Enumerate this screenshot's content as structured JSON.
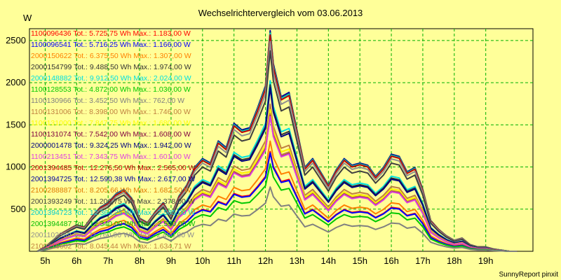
{
  "chart_data": {
    "type": "line",
    "title": "Wechselrichtervergleich vom 03.06.2013",
    "ylabel": "W",
    "credit": "SunnyReport pinxit",
    "ylim": [
      0,
      2640
    ],
    "yticks": [
      500,
      1000,
      1500,
      2000,
      2500
    ],
    "xlim": [
      4.5,
      20.5
    ],
    "xticks": [
      5,
      6,
      7,
      8,
      9,
      10,
      11,
      12,
      13,
      14,
      15,
      16,
      17,
      18,
      19
    ],
    "xtick_labels": [
      "5h",
      "6h",
      "7h",
      "8h",
      "9h",
      "10h",
      "11h",
      "12h",
      "13h",
      "14h",
      "15h",
      "16h",
      "17h",
      "18h",
      "19h"
    ],
    "grid": true,
    "legend_position": "top-left",
    "x": [
      4.75,
      5.0,
      5.25,
      5.5,
      5.75,
      6.0,
      6.25,
      6.5,
      6.75,
      7.0,
      7.25,
      7.5,
      7.75,
      8.0,
      8.25,
      8.5,
      8.75,
      9.0,
      9.25,
      9.5,
      9.75,
      10.0,
      10.25,
      10.5,
      10.75,
      11.0,
      11.25,
      11.5,
      11.75,
      12.0,
      12.15,
      12.25,
      12.5,
      12.75,
      13.0,
      13.25,
      13.5,
      13.75,
      14.0,
      14.25,
      14.5,
      14.75,
      15.0,
      15.25,
      15.5,
      15.75,
      16.0,
      16.25,
      16.5,
      16.75,
      17.0,
      17.25,
      17.5,
      17.75,
      18.0,
      18.25,
      18.5,
      18.75,
      19.0,
      19.25,
      19.5,
      19.75,
      20.0
    ],
    "series": [
      {
        "name": "1100096436",
        "label": "1100096436 Tot.: 5.725,75 Wh Max.: 1.183,00 W",
        "color": "#ff0000",
        "peak": 1183
      },
      {
        "name": "1100096541",
        "label": "1100096541 Tot.: 5.716,25 Wh Max.: 1.166,00 W",
        "color": "#0000ff",
        "peak": 1166
      },
      {
        "name": "2000150622",
        "label": "2000150622 Tot.: 6.375,50 Wh Max.: 1.307,00 W",
        "color": "#ff8000",
        "peak": 1307
      },
      {
        "name": "2000154799",
        "label": "2000154799 Tot.: 9.488,50 Wh Max.: 1.974,00 W",
        "color": "#333333",
        "peak": 1974
      },
      {
        "name": "2000148882",
        "label": "2000148882 Tot.: 9.912,50 Wh Max.: 2.024,00 W",
        "color": "#00e0e0",
        "peak": 2024
      },
      {
        "name": "1100128553",
        "label": "1100128553 Tot.: 4.872,00 Wh Max.: 1.036,00 W",
        "color": "#00c800",
        "peak": 1036
      },
      {
        "name": "1100130966",
        "label": "1100130966 Tot.: 3.452,50 Wh Max.: 762,00 W",
        "color": "#808080",
        "peak": 762
      },
      {
        "name": "1100131006",
        "label": "1100131006 Tot.: 8.398,00 Wh Max.: 1.746,00 W",
        "color": "#c08040",
        "peak": 1746
      },
      {
        "name": "1100131000",
        "label": "1100131000 Tot.: 7.847,75 Wh Max.: 1.680,00 W",
        "color": "#ffff00",
        "peak": 1680
      },
      {
        "name": "1100131074",
        "label": "1100131074 Tot.: 7.542,00 Wh Max.: 1.608,00 W",
        "color": "#800040",
        "peak": 1608
      },
      {
        "name": "2000001478",
        "label": "2000001478 Tot.: 9.324,25 Wh Max.: 1.942,00 W",
        "color": "#000080",
        "peak": 1942
      },
      {
        "name": "1100213451",
        "label": "1100213451 Tot.: 7.343,75 Wh Max.: 1.601,00 W",
        "color": "#e040e0",
        "peak": 1601
      },
      {
        "name": "2001394485",
        "label": "2001394485 Tot.: 12.276,50 Wh Max.: 2.565,00 W",
        "color": "#c00000",
        "peak": 2565
      },
      {
        "name": "2001394725",
        "label": "2001394725 Tot.: 12.590,38 Wh Max.: 2.617,00 W",
        "color": "#0000a0",
        "peak": 2617
      },
      {
        "name": "2100288887",
        "label": "2100288887 Tot.: 8.205,66 Wh Max.: 1.682,50 W",
        "color": "#e07800",
        "peak": 1682.5
      },
      {
        "name": "2001393249",
        "label": "2001393249 Tot.: 11.206,75 Wh Max.: 2.378,00 W",
        "color": "#404040",
        "peak": 2378
      },
      {
        "name": "2001394723",
        "label": "2001394723 Tot.: 12.364,25 Wh Max.: 2.585,00 W",
        "color": "#00cccc",
        "peak": 2585
      },
      {
        "name": "2001394487",
        "label": "2001394487 Tot.: 12.340,00 Wh Max.: 2.590,00 W",
        "color": "#00bb00",
        "peak": 2590
      },
      {
        "name": "2001102359",
        "label": "2001102359 Tot.: 11.760,00 Wh Max.: 2.490,00 W",
        "color": "#909090",
        "peak": 2490
      },
      {
        "name": "2100216602",
        "label": "2100216602 Tot.: 8.045,44 Wh Max.: 1.634,71 W",
        "color": "#c08040",
        "peak": 1634.71
      }
    ],
    "profile": [
      0,
      0.02,
      0.05,
      0.08,
      0.1,
      0.12,
      0.11,
      0.16,
      0.2,
      0.22,
      0.26,
      0.28,
      0.24,
      0.15,
      0.13,
      0.18,
      0.22,
      0.16,
      0.25,
      0.3,
      0.38,
      0.42,
      0.4,
      0.5,
      0.47,
      0.58,
      0.55,
      0.56,
      0.65,
      0.75,
      1.0,
      0.85,
      0.7,
      0.72,
      0.55,
      0.38,
      0.42,
      0.36,
      0.3,
      0.37,
      0.42,
      0.39,
      0.4,
      0.39,
      0.34,
      0.38,
      0.44,
      0.43,
      0.36,
      0.38,
      0.28,
      0.14,
      0.1,
      0.07,
      0.05,
      0.06,
      0.03,
      0.02,
      0.02,
      0.01,
      0.005,
      0,
      0
    ]
  }
}
